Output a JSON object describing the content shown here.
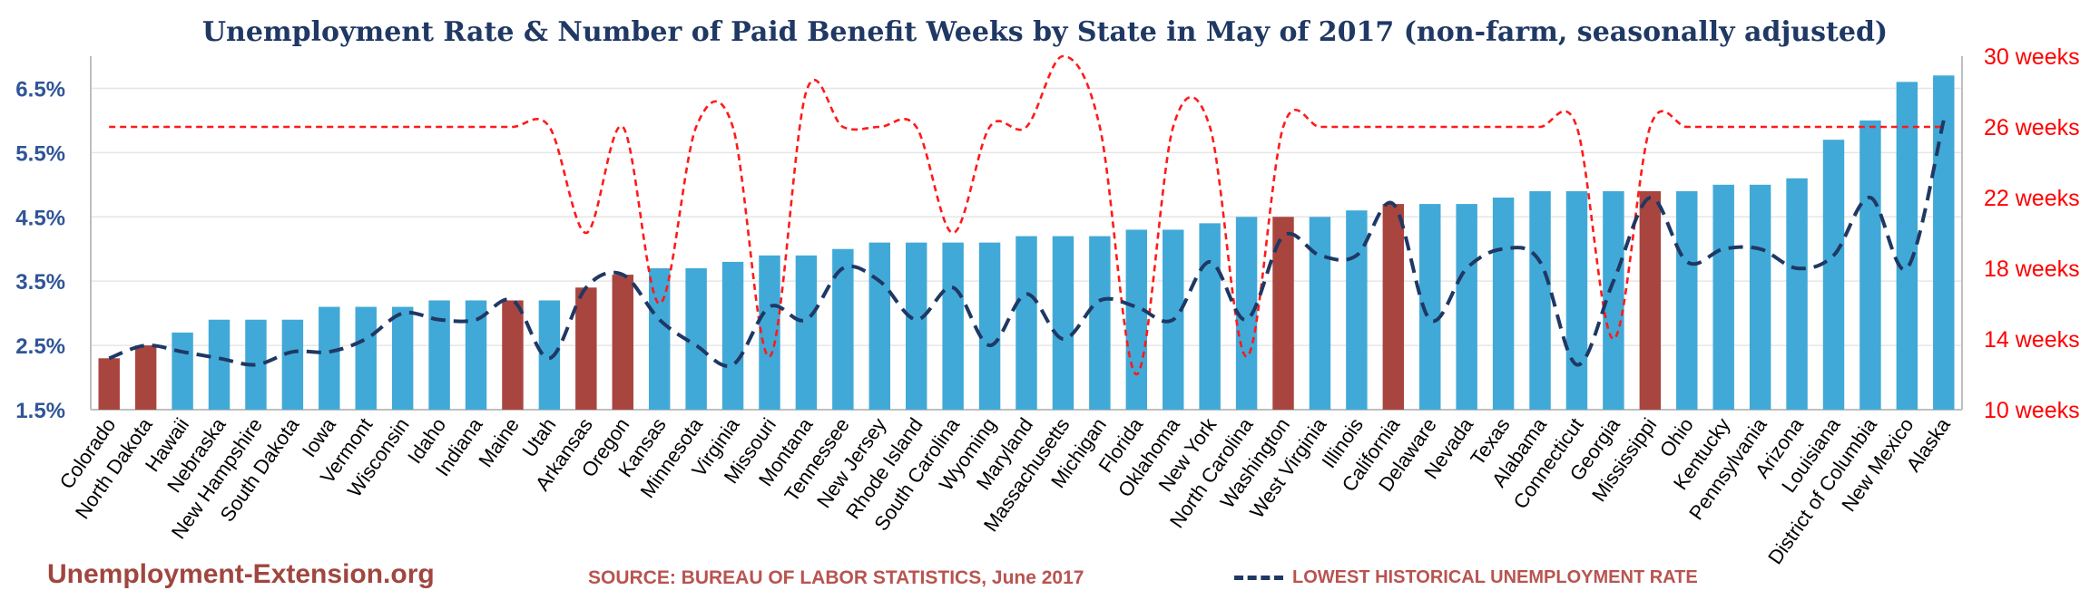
{
  "title": "Unemployment Rate & Number of Paid Benefit Weeks by State in May of 2017 (non-farm, seasonally adjusted)",
  "footer": {
    "site": "Unemployment-Extension.org",
    "source": "SOURCE: BUREAU OF LABOR STATISTICS, June 2017",
    "legend_label": "LOWEST HISTORICAL UNEMPLOYMENT RATE"
  },
  "colors": {
    "bar_default": "#41a9d7",
    "bar_highlight": "#a9453f",
    "lowest_line": "#1f3864",
    "weeks_line": "#ff1a1a",
    "left_axis_text": "#2f5597",
    "right_axis_text": "#ff0000",
    "grid": "#e6e6e6"
  },
  "chart_data": {
    "type": "bar",
    "categories": [
      "Colorado",
      "North Dakota",
      "Hawaii",
      "Nebraska",
      "New Hampshire",
      "South Dakota",
      "Iowa",
      "Vermont",
      "Wisconsin",
      "Idaho",
      "Indiana",
      "Maine",
      "Utah",
      "Arkansas",
      "Oregon",
      "Kansas",
      "Minnesota",
      "Virginia",
      "Missouri",
      "Montana",
      "Tennessee",
      "New Jersey",
      "Rhode Island",
      "South Carolina",
      "Wyoming",
      "Maryland",
      "Massachusetts",
      "Michigan",
      "Florida",
      "Oklahoma",
      "New York",
      "North Carolina",
      "Washington",
      "West Virginia",
      "Illinois",
      "California",
      "Delaware",
      "Nevada",
      "Texas",
      "Alabama",
      "Connecticut",
      "Georgia",
      "Mississippi",
      "Ohio",
      "Kentucky",
      "Pennsylvania",
      "Arizona",
      "Louisiana",
      "District of Columbia",
      "New Mexico",
      "Alaska"
    ],
    "series": [
      {
        "kind": "bar",
        "axis": "left",
        "values": [
          2.3,
          2.5,
          2.7,
          2.9,
          2.9,
          2.9,
          3.1,
          3.1,
          3.1,
          3.2,
          3.2,
          3.2,
          3.2,
          3.4,
          3.6,
          3.7,
          3.7,
          3.8,
          3.9,
          3.9,
          4.0,
          4.1,
          4.1,
          4.1,
          4.1,
          4.2,
          4.2,
          4.2,
          4.3,
          4.3,
          4.4,
          4.5,
          4.5,
          4.5,
          4.6,
          4.7,
          4.7,
          4.7,
          4.8,
          4.9,
          4.9,
          4.9,
          4.9,
          4.9,
          5.0,
          5.0,
          5.1,
          5.7,
          6.0,
          6.6,
          6.7
        ],
        "highlighted": [
          "Colorado",
          "North Dakota",
          "Maine",
          "Arkansas",
          "Oregon",
          "Washington",
          "California",
          "Mississippi"
        ]
      },
      {
        "kind": "line",
        "name": "LOWEST HISTORICAL UNEMPLOYMENT RATE",
        "style": "dashed",
        "axis": "left",
        "values": [
          2.3,
          2.5,
          2.4,
          2.3,
          2.2,
          2.4,
          2.4,
          2.6,
          3.0,
          2.9,
          2.9,
          3.2,
          2.3,
          3.4,
          3.6,
          2.9,
          2.5,
          2.2,
          3.1,
          2.9,
          3.7,
          3.5,
          2.9,
          3.4,
          2.5,
          3.3,
          2.6,
          3.2,
          3.1,
          2.9,
          3.8,
          2.9,
          4.2,
          3.9,
          3.9,
          4.7,
          2.9,
          3.7,
          4.0,
          3.8,
          2.2,
          3.5,
          4.8,
          3.8,
          4.0,
          4.0,
          3.7,
          3.9,
          4.8,
          3.7,
          6.0
        ]
      },
      {
        "kind": "line",
        "style": "dashed",
        "axis": "right",
        "values": [
          26,
          26,
          26,
          26,
          26,
          26,
          26,
          26,
          26,
          26,
          26,
          26,
          26,
          20,
          26,
          16,
          26,
          26,
          13,
          28,
          26,
          26,
          26,
          20,
          26,
          26,
          30,
          26,
          12,
          26,
          26,
          13,
          26,
          26,
          26,
          26,
          26,
          26,
          26,
          26,
          26,
          14,
          26,
          26,
          26,
          26,
          26,
          26,
          26,
          26,
          26
        ]
      }
    ],
    "y_left": {
      "ticks": [
        "1.5%",
        "2.5%",
        "3.5%",
        "4.5%",
        "5.5%",
        "6.5%"
      ],
      "range": [
        1.5,
        7.0
      ]
    },
    "y_right": {
      "ticks": [
        "10 weeks",
        "14 weeks",
        "18 weeks",
        "22 weeks",
        "26 weeks",
        "30 weeks"
      ],
      "range": [
        10,
        30
      ]
    },
    "grid": true
  }
}
